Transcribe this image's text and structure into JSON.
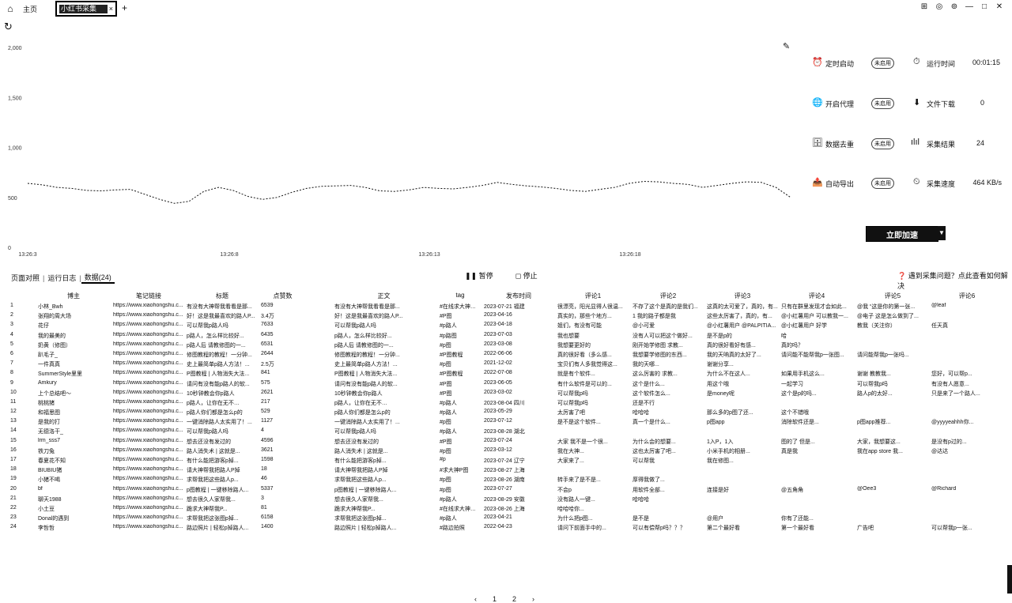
{
  "topbar": {
    "home_tab": "主页",
    "active_tab": "小红书采集",
    "close": "×",
    "add": "+"
  },
  "window_controls": [
    "⊞",
    "◎",
    "⊚",
    "—",
    "□",
    "✕"
  ],
  "chart_data": {
    "type": "line",
    "y_ticks": [
      "2,000",
      "1,500",
      "1,000",
      "500",
      "0"
    ],
    "ylim": [
      0,
      2000
    ],
    "x_ticks": [
      "13:26:3",
      "13:26:8",
      "13:26:13",
      "13:26:18"
    ],
    "values": [
      640,
      625,
      600,
      590,
      570,
      565,
      575,
      580,
      530,
      480,
      440,
      460,
      560,
      600,
      570,
      510,
      480,
      500,
      550,
      590,
      610,
      615,
      620,
      600,
      565,
      560,
      575,
      600,
      590,
      585,
      600,
      620,
      650,
      630,
      615,
      605,
      590,
      570,
      560,
      580,
      600,
      640,
      660,
      655,
      640,
      630,
      600,
      620,
      640,
      655,
      650,
      600,
      500
    ]
  },
  "panel": {
    "rows": [
      {
        "icon": "⏰",
        "label": "定时启动",
        "tag": "未启用",
        "icon2": "⏱",
        "label2": "运行时间",
        "value": "00:01:15"
      },
      {
        "icon": "🌐",
        "label": "开启代理",
        "tag": "未启用",
        "icon2": "⬇",
        "label2": "文件下载",
        "value": "0"
      },
      {
        "icon": "🗄",
        "label": "数据去重",
        "tag": "未启用",
        "icon2": "ılıl",
        "label2": "采集结果",
        "value": "24"
      },
      {
        "icon": "📤",
        "label": "自动导出",
        "tag": "未启用",
        "icon2": "⏲",
        "label2": "采集速度",
        "value": "464 KB/s"
      }
    ],
    "accelerate": "立即加速"
  },
  "tabs": [
    "页面对照",
    "运行日志",
    "数据(24)"
  ],
  "buttons": {
    "pause": "暂停",
    "stop": "停止"
  },
  "help": "遇到采集问题？点此查看如何解决",
  "table": {
    "headers": [
      "",
      "博主",
      "笔记链接",
      "标题",
      "点赞数",
      "正文",
      "tag",
      "发布时间",
      "评论1",
      "评论2",
      "评论3",
      "评论4",
      "评论5",
      "评论6"
    ],
    "rows": [
      [
        "1",
        "小林_Bwh",
        "https://www.xiaohongshu.c...",
        "有没有大神帮我看看是那...",
        "6539",
        "有没有大神帮我看看是那...",
        "#在线求大神帮忙p图",
        "2023-07-21 福建",
        "很漂亮，阳光显得人很温...",
        "不存了这个是真的是我们...",
        "这真的太可爱了，真的，有...",
        "只有在群里发现才会如此...",
        "@我 “这是你的第一张...",
        "@leaf"
      ],
      [
        "2",
        "张翔的周大场",
        "https://www.xiaohongshu.c...",
        "好！这是我最喜欢的路人P...",
        "3.4万",
        "好！这是我最喜欢的路人P...",
        "#P图",
        "2023-04-16",
        "真实的，那些个地方...",
        "1 我的路子都是我",
        "这些太厉害了，真的，有...",
        "@小红薯用户 可以教我一...",
        "@电子 这是怎么做到了...",
        ""
      ],
      [
        "3",
        "花仔",
        "https://www.xiaohongshu.c...",
        "可以帮我p路人吗",
        "7633",
        "可以帮我p路人吗",
        "#p路人",
        "2023-04-18",
        "姐们，有没有可能",
        "@小可爱",
        "@小红薯用户 @PALPITIA...",
        "@小红薯用户 好学",
        "教我（关注你）",
        "任天真"
      ],
      [
        "4",
        "我的最美的",
        "https://www.xiaohongshu.c...",
        "p路人，怎么样比较好...",
        "6435",
        "p路人，怎么样比较好...",
        "#p路图",
        "2023-07-03",
        "我也想要",
        "没有人可以把这个做好...",
        "是不是p的",
        "哈",
        "",
        " "
      ],
      [
        "5",
        "奶黄（修图）",
        "https://www.xiaohongshu.c...",
        "p路人后 请教修图的一...",
        "6531",
        "p路人后 请教修图的一...",
        "#p图",
        "2023-03-08",
        "我想要更好的",
        "刚开始学修图 求教...",
        "真的很好看好有感...",
        "真的吗？",
        "",
        ""
      ],
      [
        "6",
        "趴毛子_",
        "https://www.xiaohongshu.c...",
        "修图教程的教程！一分钟...",
        "2644",
        "修图教程的教程！一分钟...",
        "#P图教程",
        "2022-06-06",
        "真的很好看（多么感...",
        "我想要学修图的东西...",
        "我的天呐真的太好了...",
        "请问能不能帮我p一张图...",
        "请问能帮我p一张吗...",
        ""
      ],
      [
        "7",
        "一件真真",
        "https://www.xiaohongshu.c...",
        "史上最简单p路人方法！...",
        "2.5万",
        "史上最简单p路人方法！...",
        "#p图",
        "2021-12-02",
        "宝贝们有人多我觉得这...",
        "我的天哪...",
        "谢谢分享...",
        "",
        "",
        ""
      ],
      [
        "8",
        "SummerStyle里里",
        "https://www.xiaohongshu.c...",
        "P图教程 | 人物消失大法...",
        "841",
        "P图教程 | 人物消失大法...",
        "#P图教程",
        "2022-07-08",
        "就是有个软件...",
        "这么厉害的 求教...",
        "为什么不在这人...",
        "如果用手机这么...",
        "谢谢 教教我...",
        "您好，可以帮p..."
      ],
      [
        "9",
        "Amkury",
        "https://www.xiaohongshu.c...",
        "请问有没有能p路人的软...",
        "575",
        "请问有没有能p路人的软...",
        "#P图",
        "2023-06-05",
        "有什么软件是可以的...",
        "这个是什么...",
        "用这个哦",
        "一起学习",
        "可以帮我p吗",
        "有没有人愿意..."
      ],
      [
        "10",
        "上个总结吧～",
        "https://www.xiaohongshu.c...",
        "10秒钟教会你p路人",
        "2621",
        "10秒钟教会你p路人",
        "#P图",
        "2023-03-02",
        "可以帮我p吗",
        "这个软件怎么...",
        "是money呢",
        "这个是p的吗...",
        "路人p的太好...",
        "只是来了一个路人..."
      ],
      [
        "11",
        "桃桃猪",
        "https://www.xiaohongshu.c...",
        "p路人，让你在无不…",
        "217",
        "p路人，让你在无不…",
        "#p路人",
        "2023-08-04 四川",
        "可以帮我p吗",
        "还是不行",
        "",
        "",
        "",
        ""
      ],
      [
        "12",
        "和福思图",
        "https://www.xiaohongshu.c...",
        "p路人你们都是怎么p的",
        "529",
        "p路人你们都是怎么p的",
        "#p路人",
        "2023-05-29",
        "太厉害了吧",
        "哈哈哈",
        "那么多的p图了还...",
        "这个不错哦",
        "",
        ""
      ],
      [
        "13",
        "是我的打",
        "https://www.xiaohongshu.c...",
        "一键消除路人太实用了！...",
        "1127",
        "一键消除路人太实用了！...",
        "#p图",
        "2023-07-12",
        "是不是这个软件...",
        "真一个是什么...",
        "p图app",
        "消除软件还是...",
        "p图app推荐...",
        "@yyyyeahhh你..."
      ],
      [
        "14",
        "无德洛干_",
        "https://www.xiaohongshu.c...",
        "可以帮我p路人吗",
        "4",
        "可以帮我p路人吗",
        "#p路人",
        "2023-08-28 湖北",
        "",
        "",
        "",
        "",
        "",
        ""
      ],
      [
        "15",
        "lrm_sss7",
        "https://www.xiaohongshu.c...",
        "想去还没有发过的",
        "4596",
        "想去还没有发过的",
        "#P图",
        "2023-07-24",
        "大家 我不是一个很...",
        "为什么会的想要...",
        "1入P，1入",
        "图的了 但是...",
        "大家，我想要这...",
        "是没有p过的..."
      ],
      [
        "16",
        "铁刀兔",
        "https://www.xiaohongshu.c...",
        "路人消失术 | 这就是...",
        "3621",
        "路人消失术 | 这就是...",
        "#p图",
        "2023-03-12",
        "我在大神...",
        "这也太厉害了吧...",
        "小米手机的相册...",
        "真是我",
        "我在app store 我...",
        "@达达"
      ],
      [
        "17",
        "春夏花不知",
        "https://www.xiaohongshu.c...",
        "有什么能把游客p掉...",
        "1598",
        "有什么能把游客p掉...",
        "#p",
        "2023-07-24 辽宁",
        "大家来了...",
        "可以帮我",
        "我在修图...",
        "",
        "",
        ""
      ],
      [
        "18",
        "BIUBIU猪",
        "https://www.xiaohongshu.c...",
        "请大神帮我把路人P掉",
        "18",
        "请大神帮我把路人P掉",
        "#求大神P图",
        "2023-08-27 上海",
        "",
        "",
        "",
        "",
        "",
        ""
      ],
      [
        "19",
        "小猪不喝",
        "https://www.xiaohongshu.c...",
        "求帮我把这些路人p...",
        "46",
        "求帮我把这些路人p...",
        "#p图",
        "2023-08-26 湖南",
        "转手来了是不是...",
        "厚得我做了...",
        "",
        "",
        "",
        ""
      ],
      [
        "20",
        "bf",
        "https://www.xiaohongshu.c...",
        "p图教程 | 一键移除路人...",
        "5337",
        "p图教程 | 一键移除路人...",
        "#p图",
        "2023-07-27",
        "不会p",
        "用软件全部...",
        "连接是好",
        "@五角角",
        "@Oee3",
        "@Richard"
      ],
      [
        "21",
        "聊天1988",
        "https://www.xiaohongshu.c...",
        "想去很久人家帮我...",
        "3",
        "想去很久人家帮我...",
        "#p路人",
        "2023-08-29 安徽",
        "没有路人一键...",
        "哈哈哈",
        "",
        "",
        "",
        ""
      ],
      [
        "22",
        "小土豆",
        "https://www.xiaohongshu.c...",
        "跪求大神帮我P...",
        "81",
        "跪求大神帮我P...",
        "#在线求大神帮忙p图",
        "2023-08-26 上海",
        "哈哈哈你...",
        "",
        "",
        "",
        "",
        ""
      ],
      [
        "23",
        "Donal的遇到",
        "https://www.xiaohongshu.c...",
        "求帮我把这张图p掉...",
        "6158",
        "求帮我把这张图p掉...",
        "#p路人",
        "2023-04-21",
        "为什么把p图...",
        "是不是",
        "@用户",
        "你有了还能...",
        "",
        ""
      ],
      [
        "24",
        "李哲哲",
        "https://www.xiaohongshu.c...",
        "路边照片 | 轻松p掉路人...",
        "1400",
        "路边照片 | 轻松p掉路人...",
        "#路边拍照",
        "2022-04-23",
        "请问下前面手中的...",
        "可以有偿帮p吗？？？",
        "第二个最好看",
        "第一个最好看",
        "广告吧",
        "可以帮我p一张..."
      ]
    ]
  },
  "pager": {
    "prev": "‹",
    "pages": [
      "1",
      "2"
    ],
    "next": "›"
  }
}
